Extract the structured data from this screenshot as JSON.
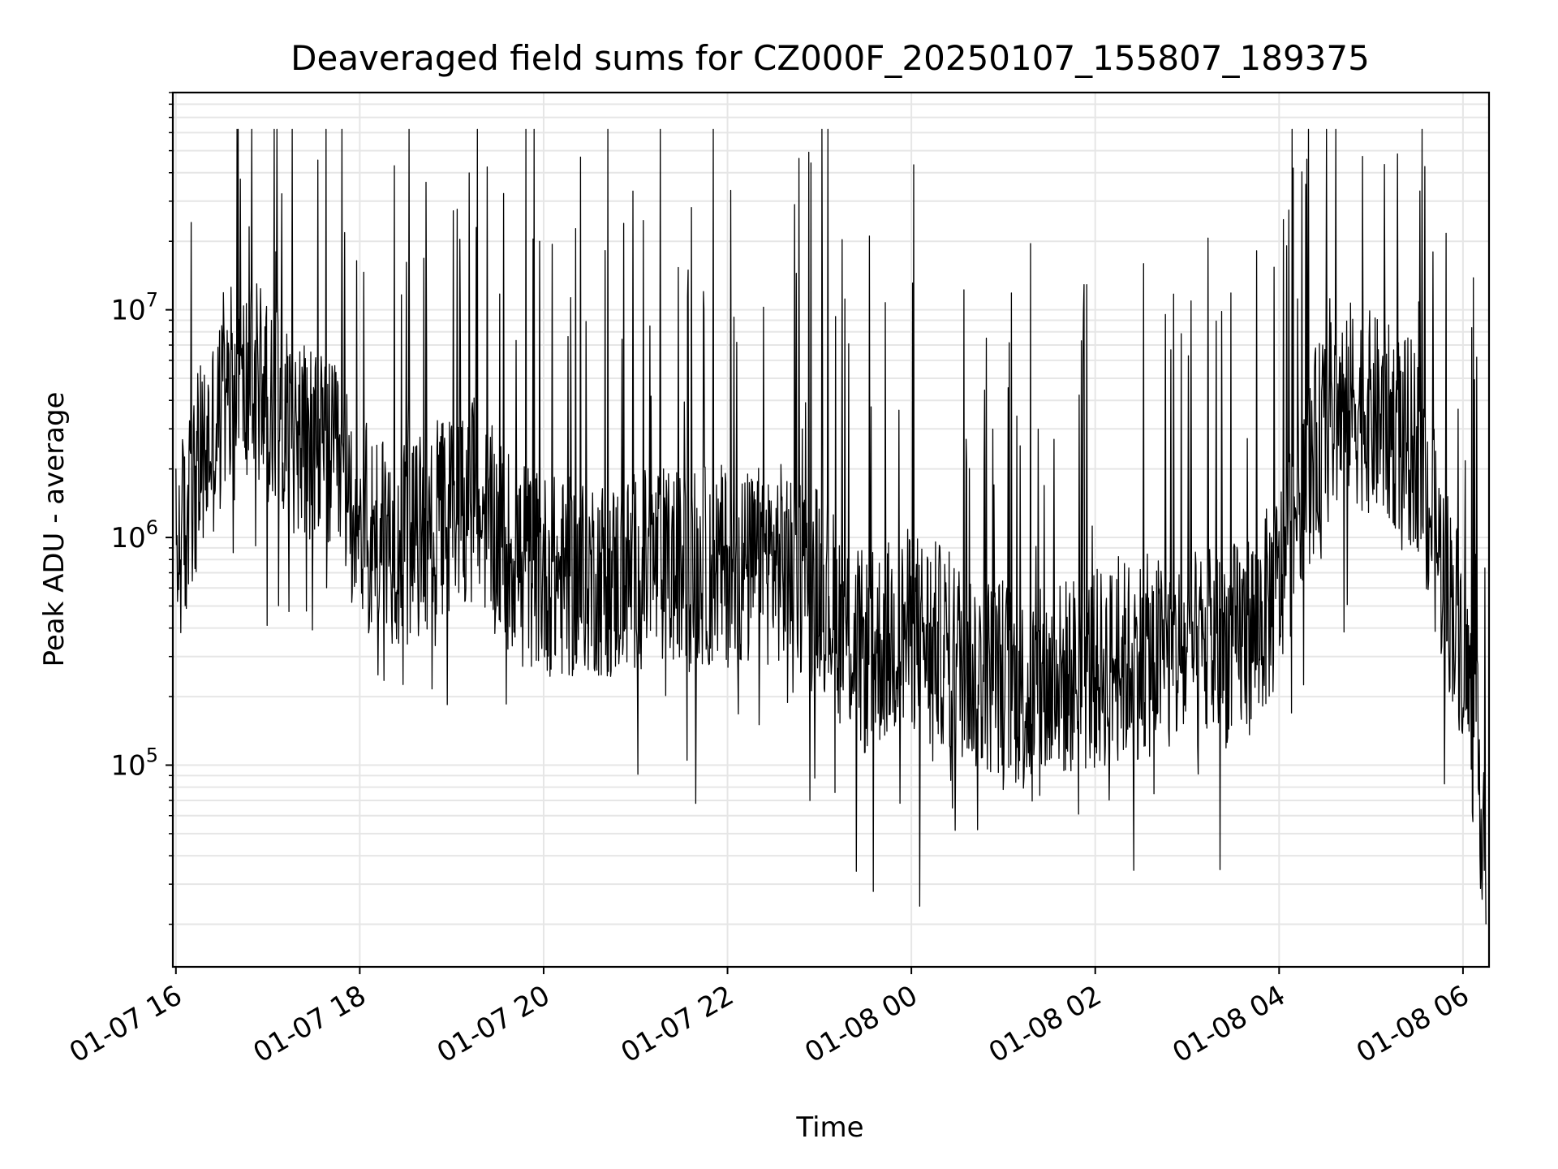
{
  "chart_data": {
    "type": "line",
    "title": "Deaveraged field sums for CZ000F_20250107_155807_189375",
    "xlabel": "Time",
    "ylabel": "Peak ADU - average",
    "x_scale": "time",
    "y_scale": "log",
    "xlim": [
      "2025-01-07 15:58",
      "2025-01-08 06:17"
    ],
    "ylim": [
      13000,
      90000000
    ],
    "x_ticks": [
      "01-07 16",
      "01-07 18",
      "01-07 20",
      "01-07 22",
      "01-08 00",
      "01-08 02",
      "01-08 04",
      "01-08 06"
    ],
    "y_ticks": [
      "10^5",
      "10^6",
      "10^7"
    ],
    "grid": true,
    "legend": "none",
    "series": [
      {
        "color": "#000000",
        "x": [
          "2025-01-07 16:00",
          "2025-01-07 16:15",
          "2025-01-07 16:30",
          "2025-01-07 16:45",
          "2025-01-07 17:00",
          "2025-01-07 17:15",
          "2025-01-07 17:30",
          "2025-01-07 17:45",
          "2025-01-07 18:00",
          "2025-01-07 18:15",
          "2025-01-07 18:30",
          "2025-01-07 18:45",
          "2025-01-07 19:00",
          "2025-01-07 19:15",
          "2025-01-07 19:30",
          "2025-01-07 19:45",
          "2025-01-07 20:00",
          "2025-01-07 20:15",
          "2025-01-07 20:30",
          "2025-01-07 20:45",
          "2025-01-07 21:00",
          "2025-01-07 21:15",
          "2025-01-07 21:30",
          "2025-01-07 21:45",
          "2025-01-07 22:00",
          "2025-01-07 22:15",
          "2025-01-07 22:30",
          "2025-01-07 22:45",
          "2025-01-07 23:00",
          "2025-01-07 23:15",
          "2025-01-07 23:30",
          "2025-01-07 23:45",
          "2025-01-08 00:00",
          "2025-01-08 00:15",
          "2025-01-08 00:30",
          "2025-01-08 00:45",
          "2025-01-08 01:00",
          "2025-01-08 01:15",
          "2025-01-08 01:30",
          "2025-01-08 01:45",
          "2025-01-08 02:00",
          "2025-01-08 02:15",
          "2025-01-08 02:30",
          "2025-01-08 02:45",
          "2025-01-08 03:00",
          "2025-01-08 03:15",
          "2025-01-08 03:30",
          "2025-01-08 03:45",
          "2025-01-08 04:00",
          "2025-01-08 04:15",
          "2025-01-08 04:30",
          "2025-01-08 04:45",
          "2025-01-08 05:00",
          "2025-01-08 05:15",
          "2025-01-08 05:30",
          "2025-01-08 05:45",
          "2025-01-08 06:00",
          "2025-01-08 06:15"
        ],
        "y": [
          800000,
          2000000,
          3500000,
          4500000,
          5000000,
          3000000,
          2500000,
          2000000,
          1200000,
          1000000,
          900000,
          1100000,
          1300000,
          1500000,
          1000000,
          800000,
          700000,
          650000,
          700000,
          650000,
          700000,
          750000,
          700000,
          750000,
          750000,
          700000,
          800000,
          700000,
          650000,
          400000,
          300000,
          350000,
          400000,
          350000,
          300000,
          250000,
          250000,
          200000,
          220000,
          250000,
          260000,
          280000,
          300000,
          300000,
          300000,
          320000,
          340000,
          400000,
          600000,
          1800000,
          3000000,
          4000000,
          3500000,
          3000000,
          2500000,
          800000,
          350000,
          50000
        ]
      }
    ]
  }
}
